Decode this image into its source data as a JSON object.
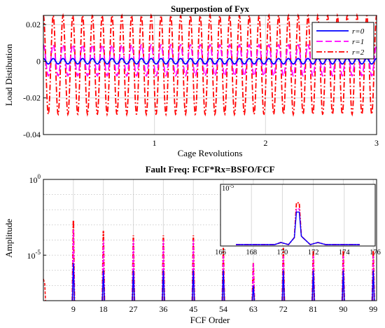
{
  "chart_data": [
    {
      "type": "line",
      "title": "Superpostion of Fyx",
      "xlabel": "Cage Revolutions",
      "ylabel": "Load Distibution",
      "xlim": [
        0,
        3
      ],
      "ylim": [
        -0.04,
        0.025
      ],
      "xticks": [
        "1",
        "2",
        "3"
      ],
      "yticks": [
        "0.02",
        "0",
        "-0.02",
        "-0.04"
      ],
      "grid": true,
      "legend_position": "top-right",
      "cycles": 34,
      "series": [
        {
          "name": "r=0",
          "color": "#0000ff",
          "dash": "solid",
          "center": 0.0,
          "amplitude": 0.0015
        },
        {
          "name": "r=1",
          "color": "#ff00ff",
          "dash": "dashed",
          "center": 0.0005,
          "amplitude": 0.0085
        },
        {
          "name": "r=2",
          "color": "#ff0000",
          "dash": "dashdot",
          "center": -0.002,
          "amplitude": 0.027
        }
      ]
    },
    {
      "type": "bar",
      "title": "Fault Freq: FCF*Rx=BSFO/FCF",
      "xlabel": "FCF Order",
      "ylabel": "Amplitude",
      "scale": "log",
      "xlim": [
        0,
        100
      ],
      "ylim": [
        1e-08,
        1
      ],
      "xticks": [
        "9",
        "18",
        "27",
        "36",
        "45",
        "54",
        "63",
        "72",
        "81",
        "90",
        "99"
      ],
      "yticks": [
        "10^0",
        "10^-5"
      ],
      "grid": true,
      "categories": [
        9,
        18,
        27,
        36,
        45,
        54,
        63,
        72,
        81,
        90,
        99
      ],
      "series": [
        {
          "name": "r=0",
          "color": "#0000ff",
          "values": [
            3e-06,
            1e-06,
            1e-06,
            1e-06,
            1e-06,
            1e-06,
            1e-07,
            1e-06,
            1e-06,
            1e-06,
            1e-06
          ]
        },
        {
          "name": "r=1",
          "color": "#ff00ff",
          "values": [
            0.0005,
            0.0001,
            0.0001,
            0.0001,
            0.0001,
            1e-05,
            3e-06,
            1e-05,
            1e-05,
            1e-05,
            1e-05
          ]
        },
        {
          "name": "r=2",
          "color": "#ff0000",
          "values": [
            0.002,
            0.0004,
            0.0002,
            0.0002,
            0.0002,
            3e-05,
            3e-06,
            3e-05,
            2e-05,
            2e-05,
            2e-05
          ]
        }
      ]
    },
    {
      "type": "line",
      "title": "",
      "xlabel": "",
      "ylabel": "",
      "xlim": [
        166,
        176
      ],
      "ylim_label": "10^-5",
      "xticks": [
        "166",
        "168",
        "170",
        "172",
        "174",
        "176"
      ],
      "peak_x": 171,
      "series": [
        {
          "name": "r=0",
          "color": "#0000ff",
          "peak": 0.55
        },
        {
          "name": "r=1",
          "color": "#ff00ff",
          "peak": 0.6
        },
        {
          "name": "r=2",
          "color": "#ff0000",
          "peak": 0.7
        }
      ]
    }
  ]
}
